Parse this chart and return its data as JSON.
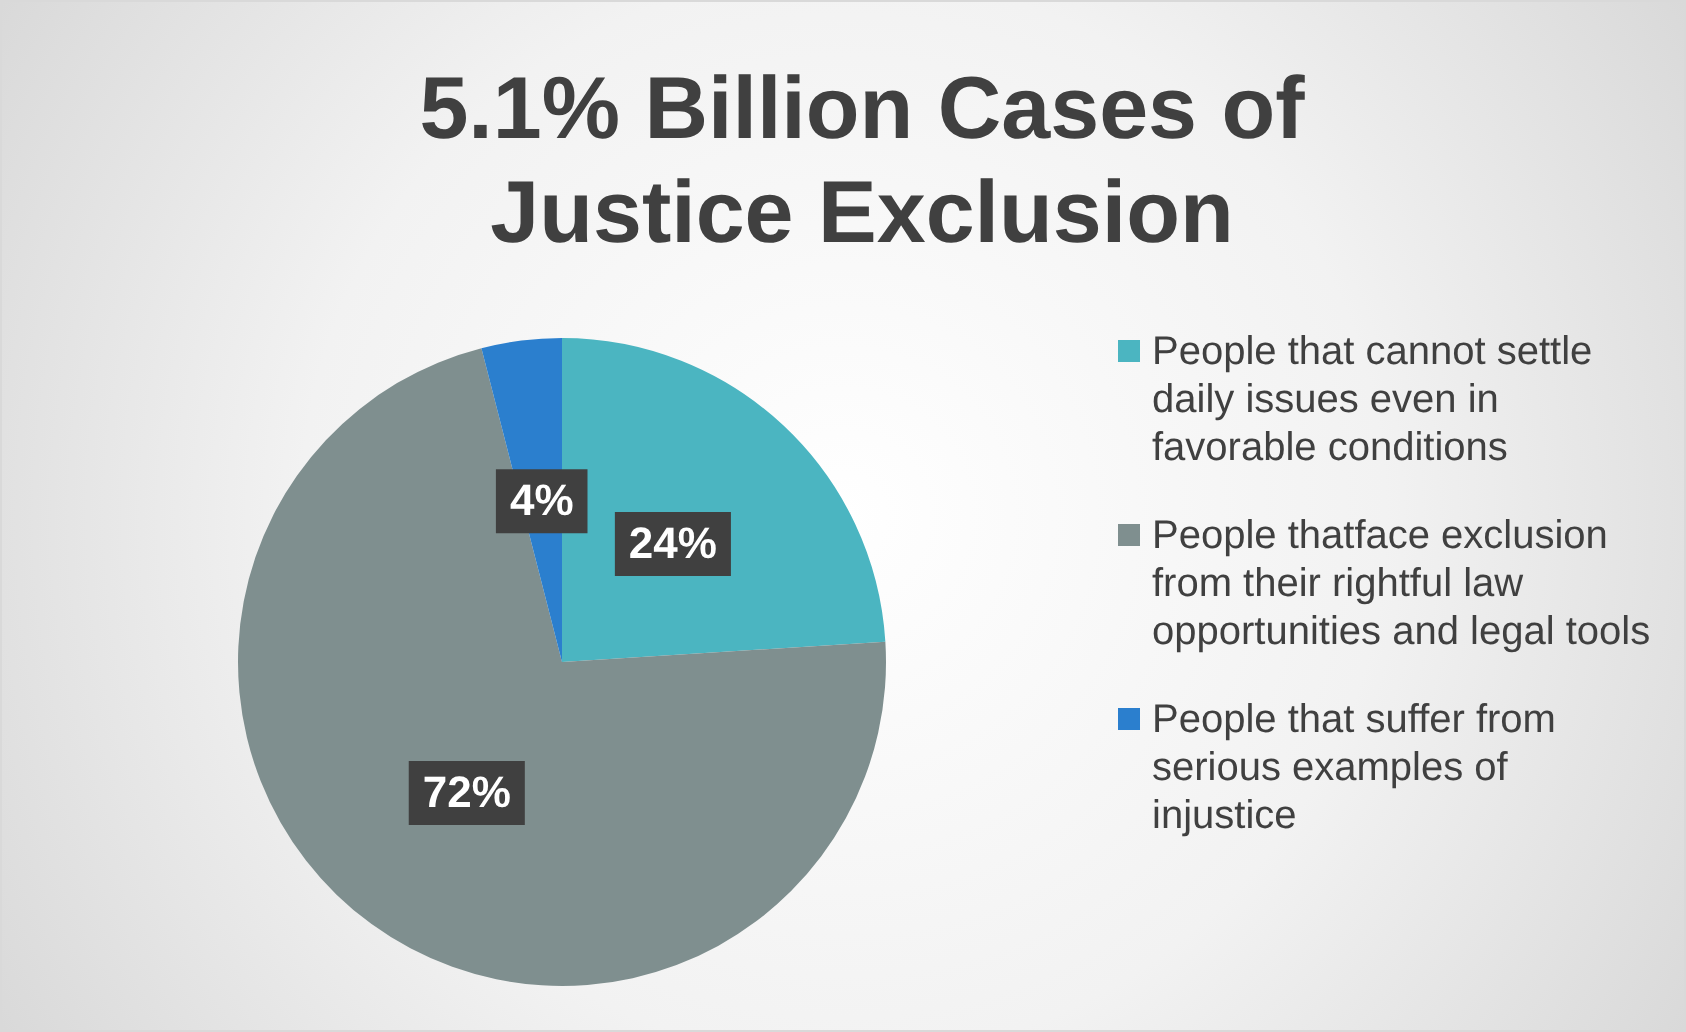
{
  "chart_data": {
    "type": "pie",
    "title": "5.1% Billion Cases of Justice Exclusion",
    "categories": [
      "People that cannot settle daily issues even in favorable conditions",
      "People thatface exclusion from their rightful law opportunities and legal tools",
      "People that suffer from serious examples of injustice"
    ],
    "values": [
      24,
      72,
      4
    ],
    "colors": [
      "#4bb5c1",
      "#7f8f8f",
      "#2b7fce"
    ],
    "value_labels": [
      "24%",
      "72%",
      "4%"
    ],
    "legend": "right"
  }
}
